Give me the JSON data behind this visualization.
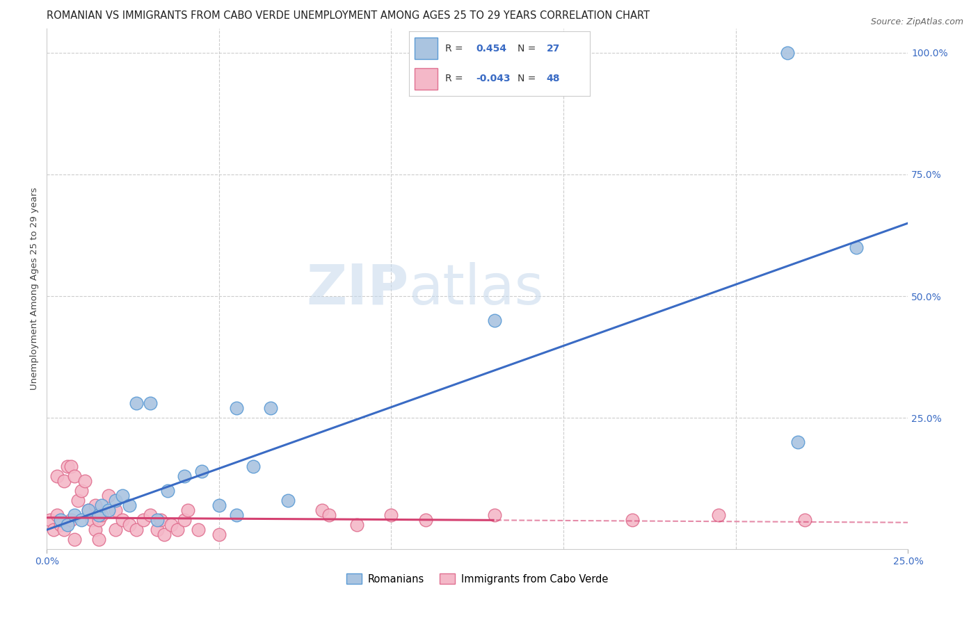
{
  "title": "ROMANIAN VS IMMIGRANTS FROM CABO VERDE UNEMPLOYMENT AMONG AGES 25 TO 29 YEARS CORRELATION CHART",
  "source": "Source: ZipAtlas.com",
  "ylabel": "Unemployment Among Ages 25 to 29 years",
  "xlim": [
    0.0,
    0.25
  ],
  "ylim": [
    -0.02,
    1.05
  ],
  "xtick_labels": [
    "0.0%",
    "25.0%"
  ],
  "xtick_vals": [
    0.0,
    0.25
  ],
  "ytick_labels": [
    "100.0%",
    "75.0%",
    "50.0%",
    "25.0%"
  ],
  "ytick_vals": [
    1.0,
    0.75,
    0.5,
    0.25
  ],
  "romanian_color": "#aac4e0",
  "romanian_edge_color": "#5b9bd5",
  "cabo_verde_color": "#f4b8c8",
  "cabo_verde_edge_color": "#e07090",
  "trend_romanian_color": "#3a6bc4",
  "trend_cabo_verde_color": "#d44070",
  "R_romanian": 0.454,
  "N_romanian": 27,
  "R_cabo_verde": -0.043,
  "N_cabo_verde": 48,
  "watermark_zip": "ZIP",
  "watermark_atlas": "atlas",
  "legend_label_romanian": "Romanians",
  "legend_label_cabo_verde": "Immigrants from Cabo Verde",
  "background_color": "#ffffff",
  "grid_color": "#cccccc",
  "romanian_points": [
    [
      0.004,
      0.04
    ],
    [
      0.006,
      0.03
    ],
    [
      0.008,
      0.05
    ],
    [
      0.01,
      0.04
    ],
    [
      0.012,
      0.06
    ],
    [
      0.015,
      0.05
    ],
    [
      0.016,
      0.07
    ],
    [
      0.018,
      0.06
    ],
    [
      0.02,
      0.08
    ],
    [
      0.022,
      0.09
    ],
    [
      0.024,
      0.07
    ],
    [
      0.026,
      0.28
    ],
    [
      0.03,
      0.28
    ],
    [
      0.032,
      0.04
    ],
    [
      0.035,
      0.1
    ],
    [
      0.04,
      0.13
    ],
    [
      0.045,
      0.14
    ],
    [
      0.05,
      0.07
    ],
    [
      0.055,
      0.05
    ],
    [
      0.06,
      0.15
    ],
    [
      0.07,
      0.08
    ],
    [
      0.055,
      0.27
    ],
    [
      0.065,
      0.27
    ],
    [
      0.13,
      0.45
    ],
    [
      0.218,
      0.2
    ],
    [
      0.235,
      0.6
    ],
    [
      0.215,
      1.0
    ]
  ],
  "cabo_verde_points": [
    [
      0.001,
      0.04
    ],
    [
      0.002,
      0.02
    ],
    [
      0.003,
      0.05
    ],
    [
      0.003,
      0.13
    ],
    [
      0.004,
      0.03
    ],
    [
      0.005,
      0.02
    ],
    [
      0.005,
      0.12
    ],
    [
      0.006,
      0.15
    ],
    [
      0.007,
      0.15
    ],
    [
      0.007,
      0.04
    ],
    [
      0.008,
      0.13
    ],
    [
      0.008,
      0.0
    ],
    [
      0.009,
      0.08
    ],
    [
      0.01,
      0.1
    ],
    [
      0.011,
      0.12
    ],
    [
      0.012,
      0.06
    ],
    [
      0.013,
      0.04
    ],
    [
      0.014,
      0.02
    ],
    [
      0.014,
      0.07
    ],
    [
      0.015,
      0.04
    ],
    [
      0.015,
      0.0
    ],
    [
      0.016,
      0.05
    ],
    [
      0.018,
      0.09
    ],
    [
      0.02,
      0.06
    ],
    [
      0.02,
      0.02
    ],
    [
      0.022,
      0.04
    ],
    [
      0.024,
      0.03
    ],
    [
      0.026,
      0.02
    ],
    [
      0.028,
      0.04
    ],
    [
      0.03,
      0.05
    ],
    [
      0.032,
      0.02
    ],
    [
      0.033,
      0.04
    ],
    [
      0.034,
      0.01
    ],
    [
      0.036,
      0.03
    ],
    [
      0.038,
      0.02
    ],
    [
      0.04,
      0.04
    ],
    [
      0.041,
      0.06
    ],
    [
      0.044,
      0.02
    ],
    [
      0.05,
      0.01
    ],
    [
      0.08,
      0.06
    ],
    [
      0.082,
      0.05
    ],
    [
      0.09,
      0.03
    ],
    [
      0.1,
      0.05
    ],
    [
      0.11,
      0.04
    ],
    [
      0.13,
      0.05
    ],
    [
      0.17,
      0.04
    ],
    [
      0.195,
      0.05
    ],
    [
      0.22,
      0.04
    ]
  ],
  "title_fontsize": 10.5,
  "axis_label_fontsize": 9.5,
  "tick_fontsize": 10,
  "legend_fontsize": 10,
  "source_fontsize": 9
}
